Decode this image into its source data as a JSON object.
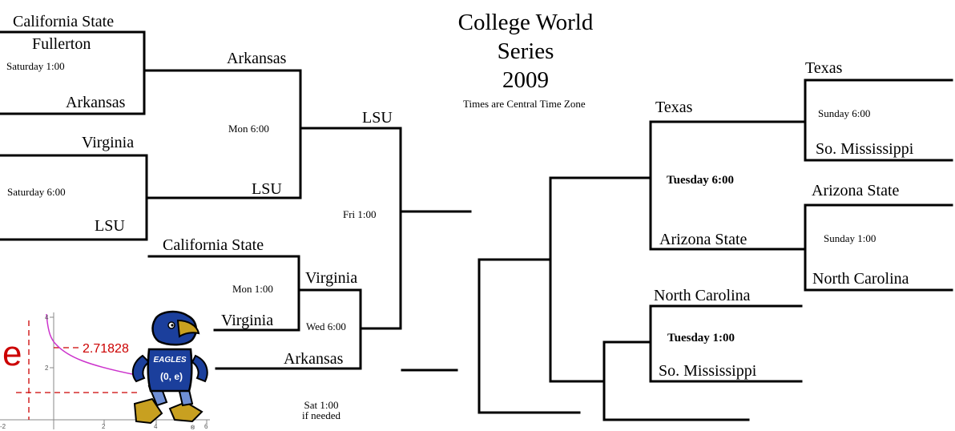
{
  "title": {
    "line1": "College World",
    "line2": "Series",
    "line3": "2009"
  },
  "timezone_note": "Times are Central Time Zone",
  "colors": {
    "line": "#000000",
    "logo_red": "#cc0000",
    "logo_curve": "#cc33cc",
    "mascot_blue": "#1b3f9c",
    "mascot_gold": "#c8a020"
  },
  "left": {
    "g1": {
      "team_top_a": "California State",
      "team_top_b": "Fullerton",
      "team_bottom": "Arkansas",
      "time": "Saturday 1:00"
    },
    "g2": {
      "team_top": "Virginia",
      "team_bottom": "LSU",
      "time": "Saturday 6:00"
    },
    "w1": {
      "team_top": "Arkansas",
      "team_bottom": "LSU",
      "time": "Mon 6:00"
    },
    "l1": {
      "team_top": "California State",
      "team_bottom": "Virginia",
      "time": "Mon 1:00"
    },
    "l2": {
      "team_top": "Virginia",
      "team_bottom": "Arkansas",
      "time": "Wed 6:00"
    },
    "final": {
      "team": "LSU",
      "time": "Fri 1:00"
    },
    "ifneeded": {
      "line1": "Sat 1:00",
      "line2": "if needed"
    }
  },
  "right": {
    "g1": {
      "team_top": "Texas",
      "team_bottom": "So. Mississippi",
      "time": "Sunday 6:00"
    },
    "g2": {
      "team_top": "Arizona State",
      "team_bottom": "North Carolina",
      "time": "Sunday 1:00"
    },
    "w1": {
      "team_top": "Texas",
      "team_bottom": "Arizona State",
      "time": "Tuesday 6:00"
    },
    "l1": {
      "team_top": "North Carolina",
      "team_bottom": "So. Mississippi",
      "time": "Tuesday 1:00"
    }
  },
  "logo": {
    "e_letter": "e",
    "value": "2.71828",
    "mascot_text_top": "EAGLES",
    "mascot_text_bottom": "(0, e)",
    "y_ticks": [
      "4",
      "2"
    ],
    "x_ticks": [
      "-2",
      "2",
      "4",
      "6"
    ],
    "registered": "®",
    "icon": "eagle-mascot-icon"
  }
}
